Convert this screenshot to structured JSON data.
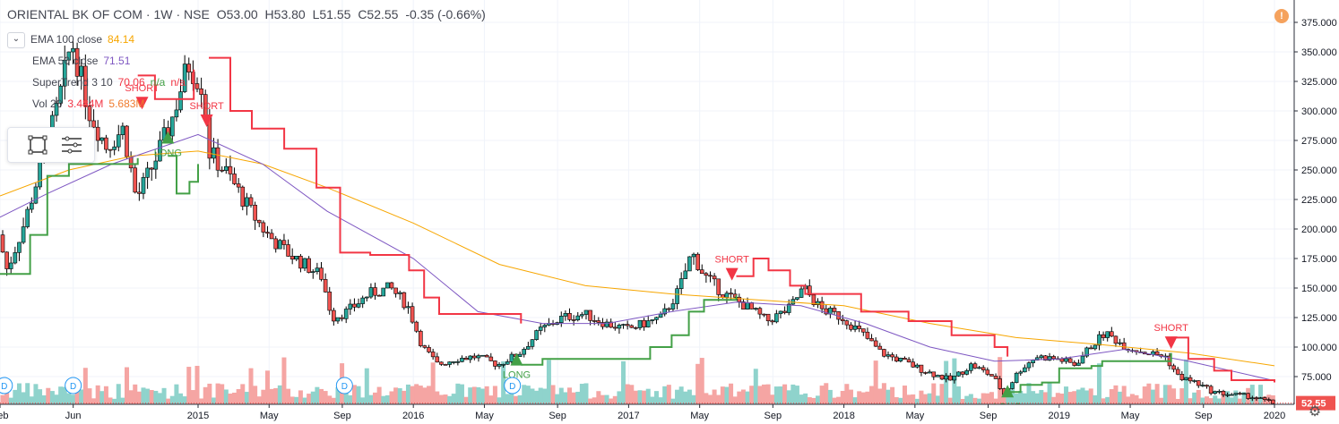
{
  "header": {
    "symbol": "ORIENTAL BK OF COM",
    "interval": "1W",
    "exchange": "NSE",
    "open": "O53.00",
    "high": "H53.80",
    "low": "L51.55",
    "close": "C52.55",
    "change": "-0.35 (-0.66%)"
  },
  "legend": [
    {
      "name": "EMA 100 close",
      "value": "84.14",
      "value2": "",
      "value3": "",
      "color": "#f7a600"
    },
    {
      "name": "EMA 50 close",
      "value": "71.51",
      "value2": "",
      "value3": "",
      "color": "#7e57c2"
    },
    {
      "name": "SuperTrend 3 10",
      "value": "70.06",
      "value2": "n/a",
      "value3": "n/a",
      "color": "#f23645"
    },
    {
      "name": "Vol 20",
      "value": "3.484M",
      "value2": "5.683M",
      "value3": "",
      "color": "#f23645"
    }
  ],
  "alert_label": "!",
  "price_badge": "52.55",
  "colors": {
    "up": "#26a69a",
    "down": "#ef5350",
    "ema100": "#f7a600",
    "ema50": "#7e57c2",
    "st_up": "#43a047",
    "st_down": "#f23645",
    "vol_up": "#8fd3cc",
    "vol_down": "#f5a5a3"
  },
  "chart_data": {
    "type": "candlestick",
    "y_range": [
      0,
      387.5
    ],
    "y_ticks": [
      "375.000",
      "350.000",
      "325.000",
      "300.000",
      "275.000",
      "250.000",
      "225.000",
      "200.000",
      "175.000",
      "150.000",
      "125.000",
      "100.000",
      "75.000"
    ],
    "x_range": [
      2014.08,
      2020.0
    ],
    "x_labels": [
      {
        "t": 2014.08,
        "label": "Feb"
      },
      {
        "t": 2014.42,
        "label": "Jun"
      },
      {
        "t": 2015.0,
        "label": "2015"
      },
      {
        "t": 2015.33,
        "label": "May"
      },
      {
        "t": 2015.67,
        "label": "Sep"
      },
      {
        "t": 2016.0,
        "label": "2016"
      },
      {
        "t": 2016.33,
        "label": "May"
      },
      {
        "t": 2016.67,
        "label": "Sep"
      },
      {
        "t": 2017.0,
        "label": "2017"
      },
      {
        "t": 2017.33,
        "label": "May"
      },
      {
        "t": 2017.67,
        "label": "Sep"
      },
      {
        "t": 2018.0,
        "label": "2018"
      },
      {
        "t": 2018.33,
        "label": "May"
      },
      {
        "t": 2018.67,
        "label": "Sep"
      },
      {
        "t": 2019.0,
        "label": "2019"
      },
      {
        "t": 2019.33,
        "label": "May"
      },
      {
        "t": 2019.67,
        "label": "Sep"
      },
      {
        "t": 2020.0,
        "label": "2020"
      }
    ],
    "price_keypoints": [
      [
        2014.08,
        195
      ],
      [
        2014.12,
        165
      ],
      [
        2014.2,
        205
      ],
      [
        2014.28,
        255
      ],
      [
        2014.35,
        300
      ],
      [
        2014.42,
        360
      ],
      [
        2014.5,
        300
      ],
      [
        2014.58,
        270
      ],
      [
        2014.66,
        285
      ],
      [
        2014.72,
        225
      ],
      [
        2014.8,
        255
      ],
      [
        2014.88,
        290
      ],
      [
        2014.96,
        340
      ],
      [
        2015.03,
        320
      ],
      [
        2015.06,
        265
      ],
      [
        2015.15,
        245
      ],
      [
        2015.25,
        215
      ],
      [
        2015.33,
        195
      ],
      [
        2015.42,
        180
      ],
      [
        2015.5,
        170
      ],
      [
        2015.58,
        160
      ],
      [
        2015.63,
        125
      ],
      [
        2015.7,
        130
      ],
      [
        2015.8,
        145
      ],
      [
        2015.9,
        150
      ],
      [
        2015.98,
        135
      ],
      [
        2016.05,
        100
      ],
      [
        2016.12,
        85
      ],
      [
        2016.2,
        90
      ],
      [
        2016.3,
        92
      ],
      [
        2016.4,
        85
      ],
      [
        2016.5,
        95
      ],
      [
        2016.6,
        115
      ],
      [
        2016.7,
        125
      ],
      [
        2016.8,
        128
      ],
      [
        2016.9,
        120
      ],
      [
        2017.0,
        115
      ],
      [
        2017.08,
        120
      ],
      [
        2017.16,
        125
      ],
      [
        2017.24,
        148
      ],
      [
        2017.3,
        180
      ],
      [
        2017.36,
        160
      ],
      [
        2017.45,
        145
      ],
      [
        2017.55,
        135
      ],
      [
        2017.65,
        122
      ],
      [
        2017.75,
        132
      ],
      [
        2017.82,
        150
      ],
      [
        2017.9,
        132
      ],
      [
        2018.0,
        125
      ],
      [
        2018.1,
        110
      ],
      [
        2018.18,
        95
      ],
      [
        2018.28,
        88
      ],
      [
        2018.38,
        80
      ],
      [
        2018.5,
        72
      ],
      [
        2018.6,
        85
      ],
      [
        2018.7,
        75
      ],
      [
        2018.75,
        60
      ],
      [
        2018.82,
        80
      ],
      [
        2018.9,
        92
      ],
      [
        2019.0,
        90
      ],
      [
        2019.08,
        85
      ],
      [
        2019.15,
        100
      ],
      [
        2019.22,
        112
      ],
      [
        2019.32,
        100
      ],
      [
        2019.42,
        95
      ],
      [
        2019.5,
        92
      ],
      [
        2019.56,
        75
      ],
      [
        2019.64,
        70
      ],
      [
        2019.72,
        62
      ],
      [
        2019.8,
        60
      ],
      [
        2019.9,
        58
      ],
      [
        2020.0,
        52.55
      ]
    ],
    "ema100": [
      [
        2014.08,
        228
      ],
      [
        2014.4,
        250
      ],
      [
        2014.7,
        262
      ],
      [
        2015.0,
        266
      ],
      [
        2015.3,
        255
      ],
      [
        2015.6,
        235
      ],
      [
        2016.0,
        205
      ],
      [
        2016.4,
        170
      ],
      [
        2016.8,
        152
      ],
      [
        2017.2,
        145
      ],
      [
        2017.6,
        140
      ],
      [
        2018.0,
        135
      ],
      [
        2018.4,
        120
      ],
      [
        2018.8,
        108
      ],
      [
        2019.2,
        102
      ],
      [
        2019.6,
        95
      ],
      [
        2020.0,
        84.14
      ]
    ],
    "ema50": [
      [
        2014.08,
        210
      ],
      [
        2014.3,
        230
      ],
      [
        2014.6,
        255
      ],
      [
        2015.0,
        280
      ],
      [
        2015.3,
        255
      ],
      [
        2015.6,
        215
      ],
      [
        2016.0,
        175
      ],
      [
        2016.3,
        130
      ],
      [
        2016.6,
        120
      ],
      [
        2016.9,
        120
      ],
      [
        2017.2,
        130
      ],
      [
        2017.5,
        138
      ],
      [
        2017.8,
        135
      ],
      [
        2018.1,
        120
      ],
      [
        2018.4,
        100
      ],
      [
        2018.7,
        88
      ],
      [
        2019.0,
        90
      ],
      [
        2019.3,
        98
      ],
      [
        2019.6,
        88
      ],
      [
        2020.0,
        71.51
      ]
    ],
    "supertrend": [
      {
        "dir": "long",
        "pts": [
          [
            2014.08,
            162
          ],
          [
            2014.18,
            162
          ],
          [
            2014.22,
            195
          ],
          [
            2014.3,
            245
          ],
          [
            2014.4,
            255
          ],
          [
            2014.65,
            255
          ],
          [
            2014.72,
            260
          ]
        ]
      },
      {
        "dir": "short",
        "pts": [
          [
            2014.72,
            330
          ],
          [
            2014.8,
            310
          ],
          [
            2014.95,
            310
          ],
          [
            2014.98,
            335
          ]
        ]
      },
      {
        "dir": "long",
        "pts": [
          [
            2014.86,
            262
          ],
          [
            2014.9,
            230
          ],
          [
            2014.96,
            240
          ],
          [
            2015.0,
            255
          ]
        ]
      },
      {
        "dir": "short",
        "pts": [
          [
            2015.05,
            345
          ],
          [
            2015.15,
            300
          ],
          [
            2015.25,
            285
          ],
          [
            2015.4,
            268
          ],
          [
            2015.55,
            235
          ],
          [
            2015.66,
            180
          ],
          [
            2015.8,
            178
          ],
          [
            2015.98,
            165
          ],
          [
            2016.05,
            142
          ],
          [
            2016.12,
            128
          ],
          [
            2016.5,
            120
          ]
        ]
      },
      {
        "dir": "long",
        "pts": [
          [
            2016.5,
            85
          ],
          [
            2016.6,
            90
          ],
          [
            2017.1,
            100
          ],
          [
            2017.2,
            110
          ],
          [
            2017.28,
            130
          ],
          [
            2017.35,
            140
          ],
          [
            2017.5,
            144
          ]
        ]
      },
      {
        "dir": "short",
        "pts": [
          [
            2017.5,
            160
          ],
          [
            2017.58,
            175
          ],
          [
            2017.65,
            165
          ],
          [
            2017.75,
            152
          ],
          [
            2017.82,
            145
          ],
          [
            2018.02,
            145
          ],
          [
            2018.08,
            130
          ],
          [
            2018.3,
            122
          ],
          [
            2018.5,
            110
          ],
          [
            2018.7,
            100
          ],
          [
            2018.76,
            92
          ]
        ]
      },
      {
        "dir": "long",
        "pts": [
          [
            2018.76,
            62
          ],
          [
            2018.82,
            68
          ],
          [
            2018.92,
            70
          ],
          [
            2019.0,
            82
          ],
          [
            2019.15,
            84
          ],
          [
            2019.2,
            88
          ],
          [
            2019.5,
            88
          ],
          [
            2019.52,
            95
          ]
        ]
      },
      {
        "dir": "short",
        "pts": [
          [
            2019.52,
            108
          ],
          [
            2019.6,
            90
          ],
          [
            2019.72,
            80
          ],
          [
            2019.8,
            72
          ],
          [
            2020.0,
            70.06
          ]
        ]
      }
    ],
    "signals": [
      {
        "type": "SHORT",
        "t": 2014.74,
        "p": 315
      },
      {
        "type": "LONG",
        "t": 2014.86,
        "p": 283
      },
      {
        "type": "SHORT",
        "t": 2015.04,
        "p": 300
      },
      {
        "type": "LONG",
        "t": 2016.48,
        "p": 95
      },
      {
        "type": "SHORT",
        "t": 2017.48,
        "p": 170
      },
      {
        "type": "LONG",
        "t": 2018.76,
        "p": 68
      },
      {
        "type": "SHORT",
        "t": 2019.52,
        "p": 112
      }
    ],
    "dividend_marker": "D",
    "dividend_dates": [
      2014.1,
      2014.42,
      2015.68,
      2016.46
    ]
  }
}
